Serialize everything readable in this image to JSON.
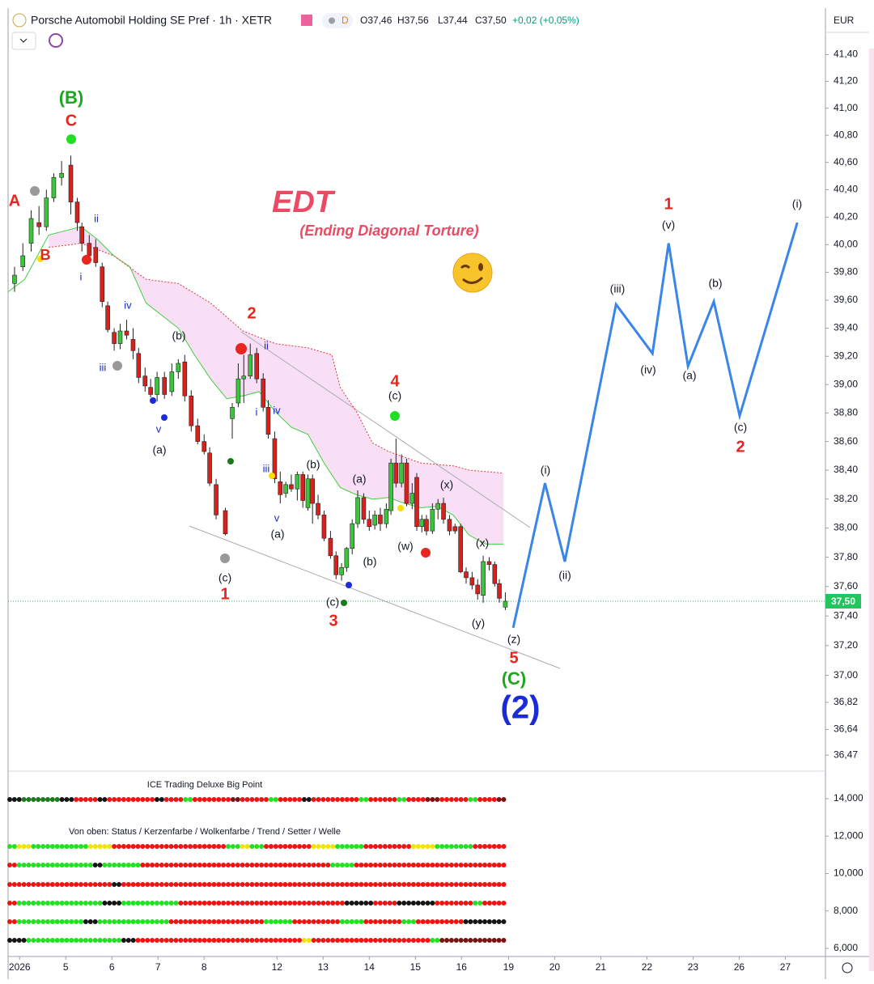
{
  "header": {
    "symbol": "Porsche Automobil Holding SE Pref · 1h · XETR",
    "badge": "D",
    "open": "O37,46",
    "high": "H37,56",
    "low": "L37,44",
    "close": "C37,50",
    "change": "+0,02 (+0,05%)",
    "currency": "EUR"
  },
  "chart_data": [
    {
      "type": "candlestick",
      "log_scale": true,
      "up_color": "#3cc43c",
      "down_color": "#d8201c",
      "xlim": [
        -0.25,
        17.47
      ],
      "xticks": [
        {
          "value": 0,
          "label": "2026"
        },
        {
          "value": 1,
          "label": "5"
        },
        {
          "value": 2,
          "label": "6"
        },
        {
          "value": 3,
          "label": "7"
        },
        {
          "value": 4,
          "label": "8"
        },
        {
          "value": 5.58,
          "label": "12"
        },
        {
          "value": 6.58,
          "label": "13"
        },
        {
          "value": 7.58,
          "label": "14"
        },
        {
          "value": 8.58,
          "label": "15"
        },
        {
          "value": 9.58,
          "label": "16"
        },
        {
          "value": 10.6,
          "label": "19"
        },
        {
          "value": 11.6,
          "label": "20"
        },
        {
          "value": 12.6,
          "label": "21"
        },
        {
          "value": 13.6,
          "label": "22"
        },
        {
          "value": 14.6,
          "label": "23"
        },
        {
          "value": 15.6,
          "label": "26"
        },
        {
          "value": 16.6,
          "label": "27"
        }
      ],
      "ylim": [
        36.38,
        41.75
      ],
      "yticks": [
        {
          "value": 41.4,
          "label": "41,40"
        },
        {
          "value": 41.2,
          "label": "41,20"
        },
        {
          "value": 41,
          "label": "41,00"
        },
        {
          "value": 40.8,
          "label": "40,80"
        },
        {
          "value": 40.6,
          "label": "40,60"
        },
        {
          "value": 40.4,
          "label": "40,40"
        },
        {
          "value": 40.2,
          "label": "40,20"
        },
        {
          "value": 40,
          "label": "40,00"
        },
        {
          "value": 39.8,
          "label": "39,80"
        },
        {
          "value": 39.6,
          "label": "39,60"
        },
        {
          "value": 39.4,
          "label": "39,40"
        },
        {
          "value": 39.2,
          "label": "39,20"
        },
        {
          "value": 39,
          "label": "39,00"
        },
        {
          "value": 38.8,
          "label": "38,80"
        },
        {
          "value": 38.6,
          "label": "38,60"
        },
        {
          "value": 38.4,
          "label": "38,40"
        },
        {
          "value": 38.2,
          "label": "38,20"
        },
        {
          "value": 38,
          "label": "38,00"
        },
        {
          "value": 37.8,
          "label": "37,80"
        },
        {
          "value": 37.6,
          "label": "37,60"
        },
        {
          "value": 37.4,
          "label": "37,40"
        },
        {
          "value": 37.2,
          "label": "37,20"
        },
        {
          "value": 37,
          "label": "37,00"
        },
        {
          "value": 36.82,
          "label": "36,82"
        },
        {
          "value": 36.64,
          "label": "36,64"
        },
        {
          "value": 36.47,
          "label": "36,47"
        }
      ],
      "last_price": {
        "value": 37.5,
        "label": "37,50"
      },
      "last_price_color": "#22c55e",
      "x": [
        -0.11,
        0.07,
        0.25,
        0.42,
        0.58,
        0.74,
        0.91,
        1.11,
        1.25,
        1.35,
        1.51,
        1.65,
        1.79,
        1.91,
        2.05,
        2.18,
        2.32,
        2.46,
        2.58,
        2.72,
        2.84,
        2.98,
        3.14,
        3.3,
        3.44,
        3.58,
        3.72,
        3.86,
        4.0,
        4.12,
        4.26,
        4.46,
        4.61,
        4.74,
        4.86,
        5.0,
        5.14,
        5.28,
        5.39,
        5.53,
        5.65,
        5.77,
        5.89,
        6.02,
        6.14,
        6.25,
        6.35,
        6.47,
        6.6,
        6.74,
        6.86,
        6.98,
        7.09,
        7.21,
        7.33,
        7.46,
        7.58,
        7.7,
        7.82,
        7.95,
        8.05,
        8.16,
        8.28,
        8.39,
        8.51,
        8.61,
        8.72,
        8.82,
        8.95,
        9.07,
        9.19,
        9.32,
        9.44,
        9.56,
        9.68,
        9.81,
        9.93,
        10.05,
        10.18,
        10.3,
        10.4,
        10.53
      ],
      "open": [
        39.72,
        39.84,
        40.01,
        40.16,
        40.13,
        40.34,
        40.49,
        40.58,
        40.31,
        40.13,
        40.01,
        39.98,
        39.84,
        39.56,
        39.37,
        39.29,
        39.38,
        39.32,
        39.22,
        39.06,
        38.98,
        38.93,
        39.05,
        38.95,
        39.09,
        39.16,
        38.92,
        38.71,
        38.6,
        38.52,
        38.3,
        38.12,
        38.76,
        38.87,
        39.04,
        39.06,
        39.22,
        39.04,
        38.84,
        38.62,
        38.32,
        38.24,
        38.3,
        38.27,
        38.37,
        38.14,
        38.34,
        38.17,
        38.09,
        37.93,
        37.81,
        37.68,
        37.73,
        37.86,
        38.03,
        38.21,
        38.06,
        38.02,
        38.09,
        38.03,
        38.12,
        38.45,
        38.31,
        38.45,
        38.17,
        38.35,
        38.01,
        38.06,
        37.98,
        38.13,
        38.17,
        38.06,
        38.01,
        38.01,
        37.7,
        37.66,
        37.61,
        37.54,
        37.77,
        37.75,
        37.62,
        37.46
      ],
      "high": [
        39.84,
        40.01,
        40.25,
        40.28,
        40.4,
        40.52,
        40.61,
        40.65,
        40.34,
        40.16,
        40.07,
        40.04,
        39.87,
        39.59,
        39.4,
        39.43,
        39.46,
        39.4,
        39.26,
        39.12,
        39.04,
        39.09,
        39.09,
        39.15,
        39.18,
        39.21,
        38.96,
        38.76,
        38.65,
        38.56,
        38.34,
        38.14,
        38.87,
        39.15,
        39.21,
        39.29,
        39.26,
        39.08,
        38.89,
        38.67,
        38.39,
        38.32,
        38.37,
        38.39,
        38.39,
        38.37,
        38.37,
        38.23,
        38.12,
        37.98,
        37.84,
        37.76,
        37.87,
        38.06,
        38.26,
        38.24,
        38.12,
        38.12,
        38.14,
        38.17,
        38.48,
        38.62,
        38.51,
        38.48,
        38.31,
        38.38,
        38.09,
        38.09,
        38.17,
        38.2,
        38.21,
        38.09,
        38.03,
        38.03,
        37.73,
        37.7,
        37.65,
        37.81,
        37.8,
        37.77,
        37.65,
        37.56
      ],
      "low": [
        39.66,
        39.81,
        39.95,
        40.07,
        40.1,
        40.31,
        40.43,
        40.22,
        40.1,
        39.95,
        39.87,
        39.84,
        39.55,
        39.37,
        39.24,
        39.25,
        39.32,
        39.18,
        39.01,
        38.95,
        38.91,
        38.88,
        38.9,
        38.92,
        39.04,
        38.88,
        38.67,
        38.58,
        38.51,
        38.29,
        38.06,
        37.95,
        38.62,
        38.84,
        38.87,
        39.04,
        39.01,
        38.81,
        38.62,
        38.31,
        38.17,
        38.21,
        38.25,
        38.19,
        38.14,
        38.12,
        38.03,
        38.06,
        37.91,
        37.79,
        37.65,
        37.64,
        37.7,
        37.82,
        38.0,
        38.03,
        37.98,
        37.99,
        37.98,
        38.0,
        38.09,
        38.28,
        38.28,
        38.15,
        38.13,
        37.98,
        37.97,
        37.95,
        37.96,
        38.06,
        38.03,
        37.95,
        37.96,
        37.69,
        37.62,
        37.58,
        37.51,
        37.49,
        37.71,
        37.6,
        37.49,
        37.44
      ],
      "close": [
        39.78,
        39.92,
        40.19,
        40.13,
        40.34,
        40.49,
        40.52,
        40.31,
        40.16,
        40.01,
        39.92,
        39.87,
        39.59,
        39.39,
        39.29,
        39.38,
        39.35,
        39.24,
        39.05,
        38.99,
        38.93,
        39.05,
        38.93,
        39.09,
        39.15,
        38.92,
        38.71,
        38.6,
        38.53,
        38.31,
        38.09,
        37.96,
        38.84,
        39.04,
        39.06,
        39.21,
        39.04,
        38.84,
        38.65,
        38.34,
        38.23,
        38.3,
        38.27,
        38.37,
        38.19,
        38.34,
        38.17,
        38.09,
        37.93,
        37.81,
        37.68,
        37.73,
        37.86,
        38.03,
        38.21,
        38.06,
        38.01,
        38.09,
        38.03,
        38.13,
        38.45,
        38.31,
        38.45,
        38.17,
        38.24,
        38.01,
        38.06,
        37.98,
        38.13,
        38.17,
        38.06,
        37.98,
        37.98,
        37.7,
        37.66,
        37.61,
        37.55,
        37.77,
        37.75,
        37.62,
        37.52,
        37.5
      ],
      "overlays": [
        {
          "type": "line",
          "color": "#3dd13d",
          "dashed": false,
          "width": 1,
          "x": [
            -0.25,
            0.11,
            0.63,
            0.98,
            1.33,
            1.68,
            2.04,
            2.39,
            2.74,
            3.09,
            3.44,
            3.79,
            4.14,
            4.49,
            4.84,
            5.19,
            5.54,
            5.89,
            6.25,
            6.6,
            6.95,
            7.3,
            7.65,
            8.0,
            8.35,
            8.7,
            9.05,
            9.4,
            9.75,
            10.11,
            10.49
          ],
          "values": [
            39.66,
            39.75,
            40.07,
            40.1,
            40.13,
            40.04,
            39.92,
            39.84,
            39.58,
            39.49,
            39.4,
            39.21,
            39.04,
            38.9,
            38.92,
            38.95,
            38.81,
            38.7,
            38.65,
            38.45,
            38.28,
            38.23,
            38.2,
            38.21,
            38.17,
            38.14,
            38.15,
            38.09,
            37.95,
            37.89,
            37.89
          ]
        },
        {
          "type": "line",
          "color": "#e53935",
          "dashed": true,
          "width": 1,
          "x": [
            0.63,
            1.33,
            2.04,
            2.74,
            3.44,
            4.14,
            4.84,
            5.54,
            6.25,
            6.77,
            6.95,
            7.3,
            7.65,
            8.0,
            8.7,
            9.4,
            9.75,
            10.49
          ],
          "values": [
            39.98,
            40.01,
            39.92,
            39.75,
            39.72,
            39.58,
            39.38,
            39.29,
            39.26,
            39.21,
            38.98,
            38.81,
            38.59,
            38.53,
            38.45,
            38.43,
            38.4,
            38.38
          ]
        },
        {
          "type": "line",
          "color": "#3a86e8",
          "dashed": false,
          "width": 3,
          "x": [
            10.7,
            11.39,
            11.82,
            12.93,
            13.72,
            14.07,
            14.49,
            15.05,
            15.61,
            16.86
          ],
          "values": [
            37.32,
            38.31,
            37.77,
            39.57,
            39.22,
            40.01,
            39.13,
            39.59,
            38.78,
            40.16
          ]
        }
      ],
      "cloud_color": "#f8dff5",
      "annotations": [
        {
          "text": "(B)",
          "color": "#1ea61e"
        },
        {
          "text": "C",
          "color": "#e8251e"
        },
        {
          "text": "A",
          "color": "#e8251e"
        },
        {
          "text": "B",
          "color": "#e8251e"
        },
        {
          "text": "ii",
          "color": "#1a2bc4"
        },
        {
          "text": "i",
          "color": "#1a2bc4"
        },
        {
          "text": "iv",
          "color": "#1a2bc4"
        },
        {
          "text": "iii",
          "color": "#1a2bc4"
        },
        {
          "text": "v",
          "color": "#1a2bc4"
        },
        {
          "text": "(b)",
          "color": "#131722"
        },
        {
          "text": "(a)",
          "color": "#131722"
        },
        {
          "text": "(c)",
          "color": "#131722"
        },
        {
          "text": "1",
          "color": "#e8251e"
        },
        {
          "text": "2",
          "color": "#e8251e"
        },
        {
          "text": "ii",
          "color": "#1a2bc4"
        },
        {
          "text": "i",
          "color": "#1a2bc4"
        },
        {
          "text": "iv",
          "color": "#1a2bc4"
        },
        {
          "text": "iii",
          "color": "#1a2bc4"
        },
        {
          "text": "v",
          "color": "#1a2bc4"
        },
        {
          "text": "(a)",
          "color": "#131722"
        },
        {
          "text": "(b)",
          "color": "#131722"
        },
        {
          "text": "(c)",
          "color": "#131722"
        },
        {
          "text": "3",
          "color": "#e8251e"
        },
        {
          "text": "(a)",
          "color": "#131722"
        },
        {
          "text": "(b)",
          "color": "#131722"
        },
        {
          "text": "4",
          "color": "#e8251e"
        },
        {
          "text": "(c)",
          "color": "#131722"
        },
        {
          "text": "(w)",
          "color": "#131722"
        },
        {
          "text": "(x)",
          "color": "#131722"
        },
        {
          "text": "(x)",
          "color": "#131722"
        },
        {
          "text": "(y)",
          "color": "#131722"
        },
        {
          "text": "(z)",
          "color": "#131722"
        },
        {
          "text": "5",
          "color": "#e8251e"
        },
        {
          "text": "(C)",
          "color": "#1ea61e"
        },
        {
          "text": "(2)",
          "color": "#1a2bd8"
        },
        {
          "text": "(i)",
          "color": "#131722"
        },
        {
          "text": "(ii)",
          "color": "#131722"
        },
        {
          "text": "(iii)",
          "color": "#131722"
        },
        {
          "text": "(iv)",
          "color": "#131722"
        },
        {
          "text": "1",
          "color": "#e8251e"
        },
        {
          "text": "(v)",
          "color": "#131722"
        },
        {
          "text": "(a)",
          "color": "#131722"
        },
        {
          "text": "(b)",
          "color": "#131722"
        },
        {
          "text": "(c)",
          "color": "#131722"
        },
        {
          "text": "2",
          "color": "#e8251e"
        },
        {
          "text": "(i)",
          "color": "#131722"
        },
        {
          "text": "EDT",
          "color": "#ea4a63"
        },
        {
          "text": "(Ending Diagonal Torture)",
          "color": "#ea4a63"
        }
      ]
    },
    {
      "type": "dots",
      "title": "ICE Trading Deluxe Big Point",
      "subtitle": "Von oben: Status / Kerzenfarbe / Wolkenfarbe / Trend / Setter / Welle",
      "ylim": [
        5570,
        15380
      ],
      "yticks": [
        {
          "value": 14000,
          "label": "14,000"
        },
        {
          "value": 12000,
          "label": "12,000"
        },
        {
          "value": 10000,
          "label": "10,000"
        },
        {
          "value": 8000,
          "label": "8,000"
        },
        {
          "value": 6000,
          "label": "6,000"
        }
      ]
    }
  ]
}
